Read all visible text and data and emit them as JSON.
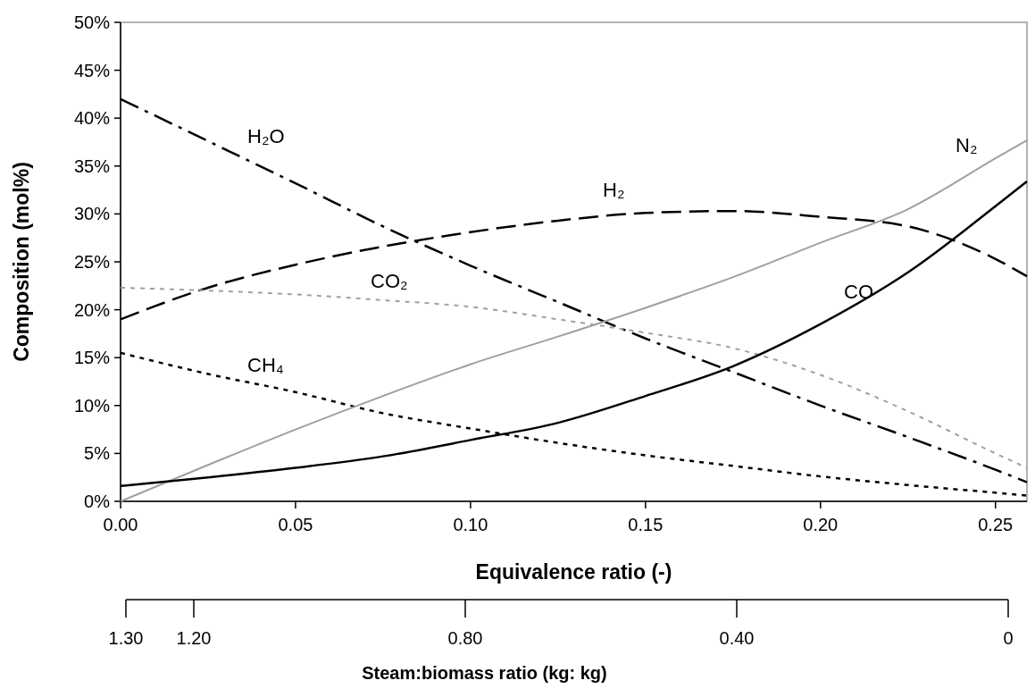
{
  "chart_data": {
    "type": "line",
    "xlabel": "Equivalence ratio (-)",
    "ylabel": "Composition (mol%)",
    "x2label": "Steam:biomass ratio (kg: kg)",
    "x": [
      0,
      0.025,
      0.05,
      0.075,
      0.1,
      0.125,
      0.15,
      0.175,
      0.2,
      0.225,
      0.25,
      0.259
    ],
    "xlim": [
      0,
      0.259
    ],
    "xticks": [
      {
        "value": 0,
        "label": "0.00"
      },
      {
        "value": 0.05,
        "label": "0.05"
      },
      {
        "value": 0.1,
        "label": "0.10"
      },
      {
        "value": 0.15,
        "label": "0.15"
      },
      {
        "value": 0.2,
        "label": "0.20"
      },
      {
        "value": 0.25,
        "label": "0.25"
      }
    ],
    "x2lim": [
      1.3,
      0
    ],
    "x2ticks": [
      {
        "value": 1.3,
        "label": "1.30"
      },
      {
        "value": 1.2,
        "label": "1.20"
      },
      {
        "value": 0.8,
        "label": "0.80"
      },
      {
        "value": 0.4,
        "label": "0.40"
      },
      0
    ],
    "ylim": [
      0,
      50
    ],
    "yticks": [
      {
        "value": 0,
        "label": "0%"
      },
      {
        "value": 5,
        "label": "5%"
      },
      {
        "value": 10,
        "label": "10%"
      },
      {
        "value": 15,
        "label": "15%"
      },
      {
        "value": 20,
        "label": "20%"
      },
      {
        "value": 25,
        "label": "25%"
      },
      {
        "value": 30,
        "label": "30%"
      },
      {
        "value": 35,
        "label": "35%"
      },
      {
        "value": 40,
        "label": "40%"
      },
      {
        "value": 45,
        "label": "45%"
      },
      {
        "value": 50,
        "label": "50%"
      }
    ],
    "marker": "none",
    "series": [
      {
        "name": "H₂O",
        "color": "#000000",
        "line_style": "dashdot",
        "values": [
          42,
          37.6,
          33.2,
          28.7,
          24.6,
          20.8,
          17,
          13.5,
          10,
          6.7,
          3.3,
          2
        ]
      },
      {
        "name": "H₂",
        "color": "#000000",
        "line_style": "dashed",
        "values": [
          19,
          22.3,
          24.7,
          26.6,
          28.1,
          29.3,
          30.1,
          30.3,
          29.7,
          28.7,
          25.3,
          23.5
        ]
      },
      {
        "name": "CO₂",
        "color": "#a0a0a0",
        "line_style": "dotted",
        "values": [
          22.3,
          22,
          21.6,
          21,
          20.3,
          19,
          17.6,
          16,
          13.2,
          9.4,
          5,
          3.5
        ]
      },
      {
        "name": "CH₄",
        "color": "#000000",
        "line_style": "dotted",
        "values": [
          15.5,
          13.3,
          11.4,
          9.2,
          7.6,
          6.1,
          4.8,
          3.7,
          2.6,
          1.7,
          0.9,
          0.6
        ]
      },
      {
        "name": "N₂",
        "color": "#a0a0a0",
        "line_style": "solid",
        "values": [
          0,
          3.8,
          7.5,
          11,
          14.3,
          17.2,
          20.2,
          23.4,
          27,
          30.5,
          35.8,
          37.7
        ]
      },
      {
        "name": "CO",
        "color": "#000000",
        "line_style": "solid",
        "values": [
          1.6,
          2.5,
          3.5,
          4.7,
          6.4,
          8.2,
          11,
          14.1,
          18.5,
          23.9,
          30.8,
          33.4
        ]
      }
    ]
  }
}
